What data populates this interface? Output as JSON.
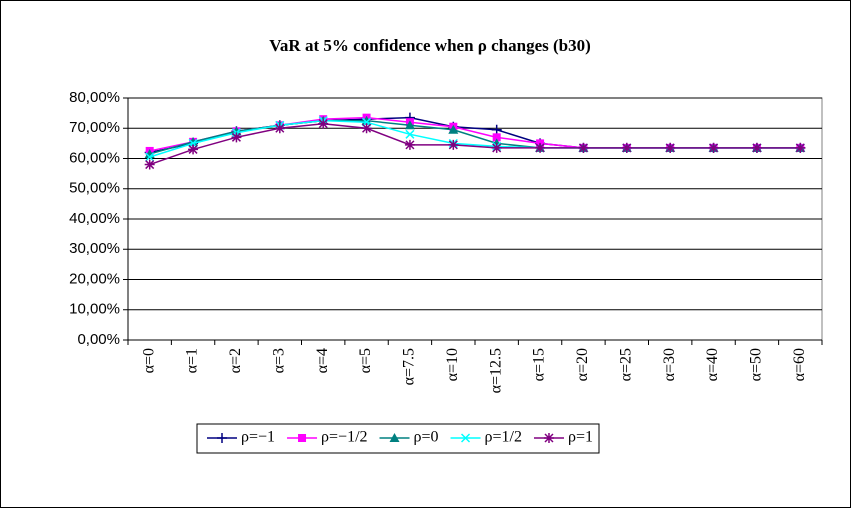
{
  "chart_data": {
    "type": "line",
    "title": "VaR at 5% confidence when ρ changes (b30)",
    "categories": [
      "α=0",
      "α=1",
      "α=2",
      "α=3",
      "α=4",
      "α=5",
      "α=7.5",
      "α=10",
      "α=12.5",
      "α=15",
      "α=20",
      "α=25",
      "α=30",
      "α=40",
      "α=50",
      "α=60"
    ],
    "series": [
      {
        "name": "ρ=−1",
        "color": "#000080",
        "marker": "plus",
        "values": [
          62,
          65,
          69,
          71,
          72.5,
          73,
          73.5,
          70.5,
          69.5,
          65,
          63.5,
          63.5,
          63.5,
          63.5,
          63.5,
          63.5
        ]
      },
      {
        "name": "ρ=−1/2",
        "color": "#ff00ff",
        "marker": "square",
        "values": [
          62.5,
          65.5,
          69,
          71,
          73,
          73.5,
          72,
          70.5,
          67,
          65,
          63.5,
          63.5,
          63.5,
          63.5,
          63.5,
          63.5
        ]
      },
      {
        "name": "ρ=0",
        "color": "#008080",
        "marker": "triangle",
        "values": [
          61.5,
          65.5,
          69,
          71,
          72.5,
          72.5,
          71,
          69.5,
          65,
          63.5,
          63.5,
          63.5,
          63.5,
          63.5,
          63.5,
          63.5
        ]
      },
      {
        "name": "ρ=1/2",
        "color": "#00ffff",
        "marker": "x",
        "values": [
          60.5,
          65,
          68.5,
          71,
          72.5,
          72,
          68,
          65,
          64,
          63.5,
          63.5,
          63.5,
          63.5,
          63.5,
          63.5,
          63.5
        ]
      },
      {
        "name": "ρ=1",
        "color": "#800080",
        "marker": "star",
        "values": [
          58,
          63,
          67,
          70,
          71.5,
          70,
          64.5,
          64.5,
          63.5,
          63.5,
          63.5,
          63.5,
          63.5,
          63.5,
          63.5,
          63.5
        ]
      }
    ],
    "ylim": [
      0,
      80
    ],
    "yticks": [
      {
        "value": 0,
        "label": "0,00%"
      },
      {
        "value": 10,
        "label": "10,00%"
      },
      {
        "value": 20,
        "label": "20,00%"
      },
      {
        "value": 30,
        "label": "30,00%"
      },
      {
        "value": 40,
        "label": "40,00%"
      },
      {
        "value": 50,
        "label": "50,00%"
      },
      {
        "value": 60,
        "label": "60,00%"
      },
      {
        "value": 70,
        "label": "70,00%"
      },
      {
        "value": 80,
        "label": "80,00%"
      }
    ],
    "grid": true,
    "legend": "bottom"
  }
}
